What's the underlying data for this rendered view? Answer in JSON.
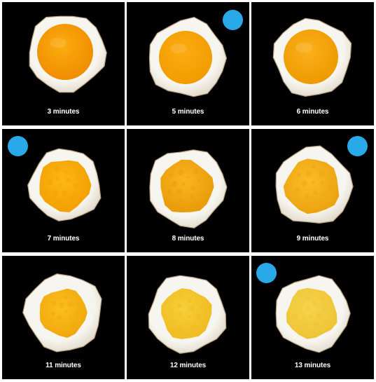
{
  "accent_dot_color": "#2aa9e8",
  "white_color": "#f7f5ef",
  "tiles": [
    {
      "label": "3 minutes",
      "marker": false,
      "yolk_style": "runny",
      "yolk_color": "#fbad0f",
      "yolk_shade": "#f08d00"
    },
    {
      "label": "5 minutes",
      "marker": true,
      "yolk_style": "jammy",
      "yolk_color": "#fbac12",
      "yolk_shade": "#f29c00"
    },
    {
      "label": "6 minutes",
      "marker": false,
      "yolk_style": "jammy",
      "yolk_color": "#fbb01c",
      "yolk_shade": "#ee9a00"
    },
    {
      "label": "7 minutes",
      "marker": true,
      "yolk_style": "soft",
      "yolk_color": "#fdb718",
      "yolk_shade": "#f39f00"
    },
    {
      "label": "8 minutes",
      "marker": false,
      "yolk_style": "soft-set",
      "yolk_color": "#fbb51f",
      "yolk_shade": "#e99b0a"
    },
    {
      "label": "9 minutes",
      "marker": true,
      "yolk_style": "soft-set",
      "yolk_color": "#fbbd27",
      "yolk_shade": "#eca312"
    },
    {
      "label": "11 minutes",
      "marker": false,
      "yolk_style": "mostly-set",
      "yolk_color": "#fcc021",
      "yolk_shade": "#f0a80b"
    },
    {
      "label": "12 minutes",
      "marker": false,
      "yolk_style": "firm",
      "yolk_color": "#f8cf38",
      "yolk_shade": "#efbc22"
    },
    {
      "label": "13 minutes",
      "marker": true,
      "yolk_style": "firm",
      "yolk_color": "#f7d44a",
      "yolk_shade": "#eec436"
    }
  ]
}
